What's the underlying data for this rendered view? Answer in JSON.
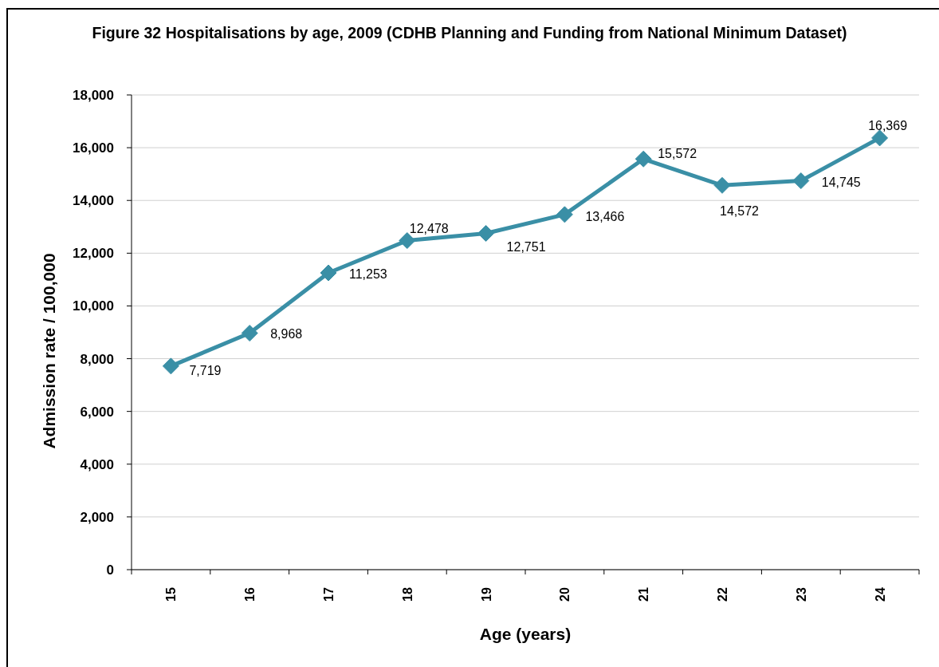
{
  "chart_data": {
    "type": "line",
    "title": "Figure 32 Hospitalisations by age, 2009 (CDHB Planning and Funding from National Minimum Dataset)",
    "xlabel": "Age (years)",
    "ylabel": "Admission rate / 100,000",
    "categories": [
      "15",
      "16",
      "17",
      "18",
      "19",
      "20",
      "21",
      "22",
      "23",
      "24"
    ],
    "series": [
      {
        "color": "#3a8fa6",
        "values": [
          7719,
          8968,
          11253,
          12478,
          12751,
          13466,
          15572,
          14572,
          14745,
          16369
        ],
        "value_labels": [
          "7,719",
          "8,968",
          "11,253",
          "12,478",
          "12,751",
          "13,466",
          "15,572",
          "14,572",
          "14,745",
          "16,369"
        ]
      }
    ],
    "ylim": [
      0,
      18000
    ],
    "yticks": [
      {
        "value": 0,
        "label": "0"
      },
      {
        "value": 2000,
        "label": "2,000"
      },
      {
        "value": 4000,
        "label": "4,000"
      },
      {
        "value": 6000,
        "label": "6,000"
      },
      {
        "value": 8000,
        "label": "8,000"
      },
      {
        "value": 10000,
        "label": "10,000"
      },
      {
        "value": 12000,
        "label": "12,000"
      },
      {
        "value": 14000,
        "label": "14,000"
      },
      {
        "value": 16000,
        "label": "16,000"
      },
      {
        "value": 18000,
        "label": "18,000"
      }
    ],
    "grid": "y",
    "marker": "diamond",
    "line_style": "solid"
  }
}
